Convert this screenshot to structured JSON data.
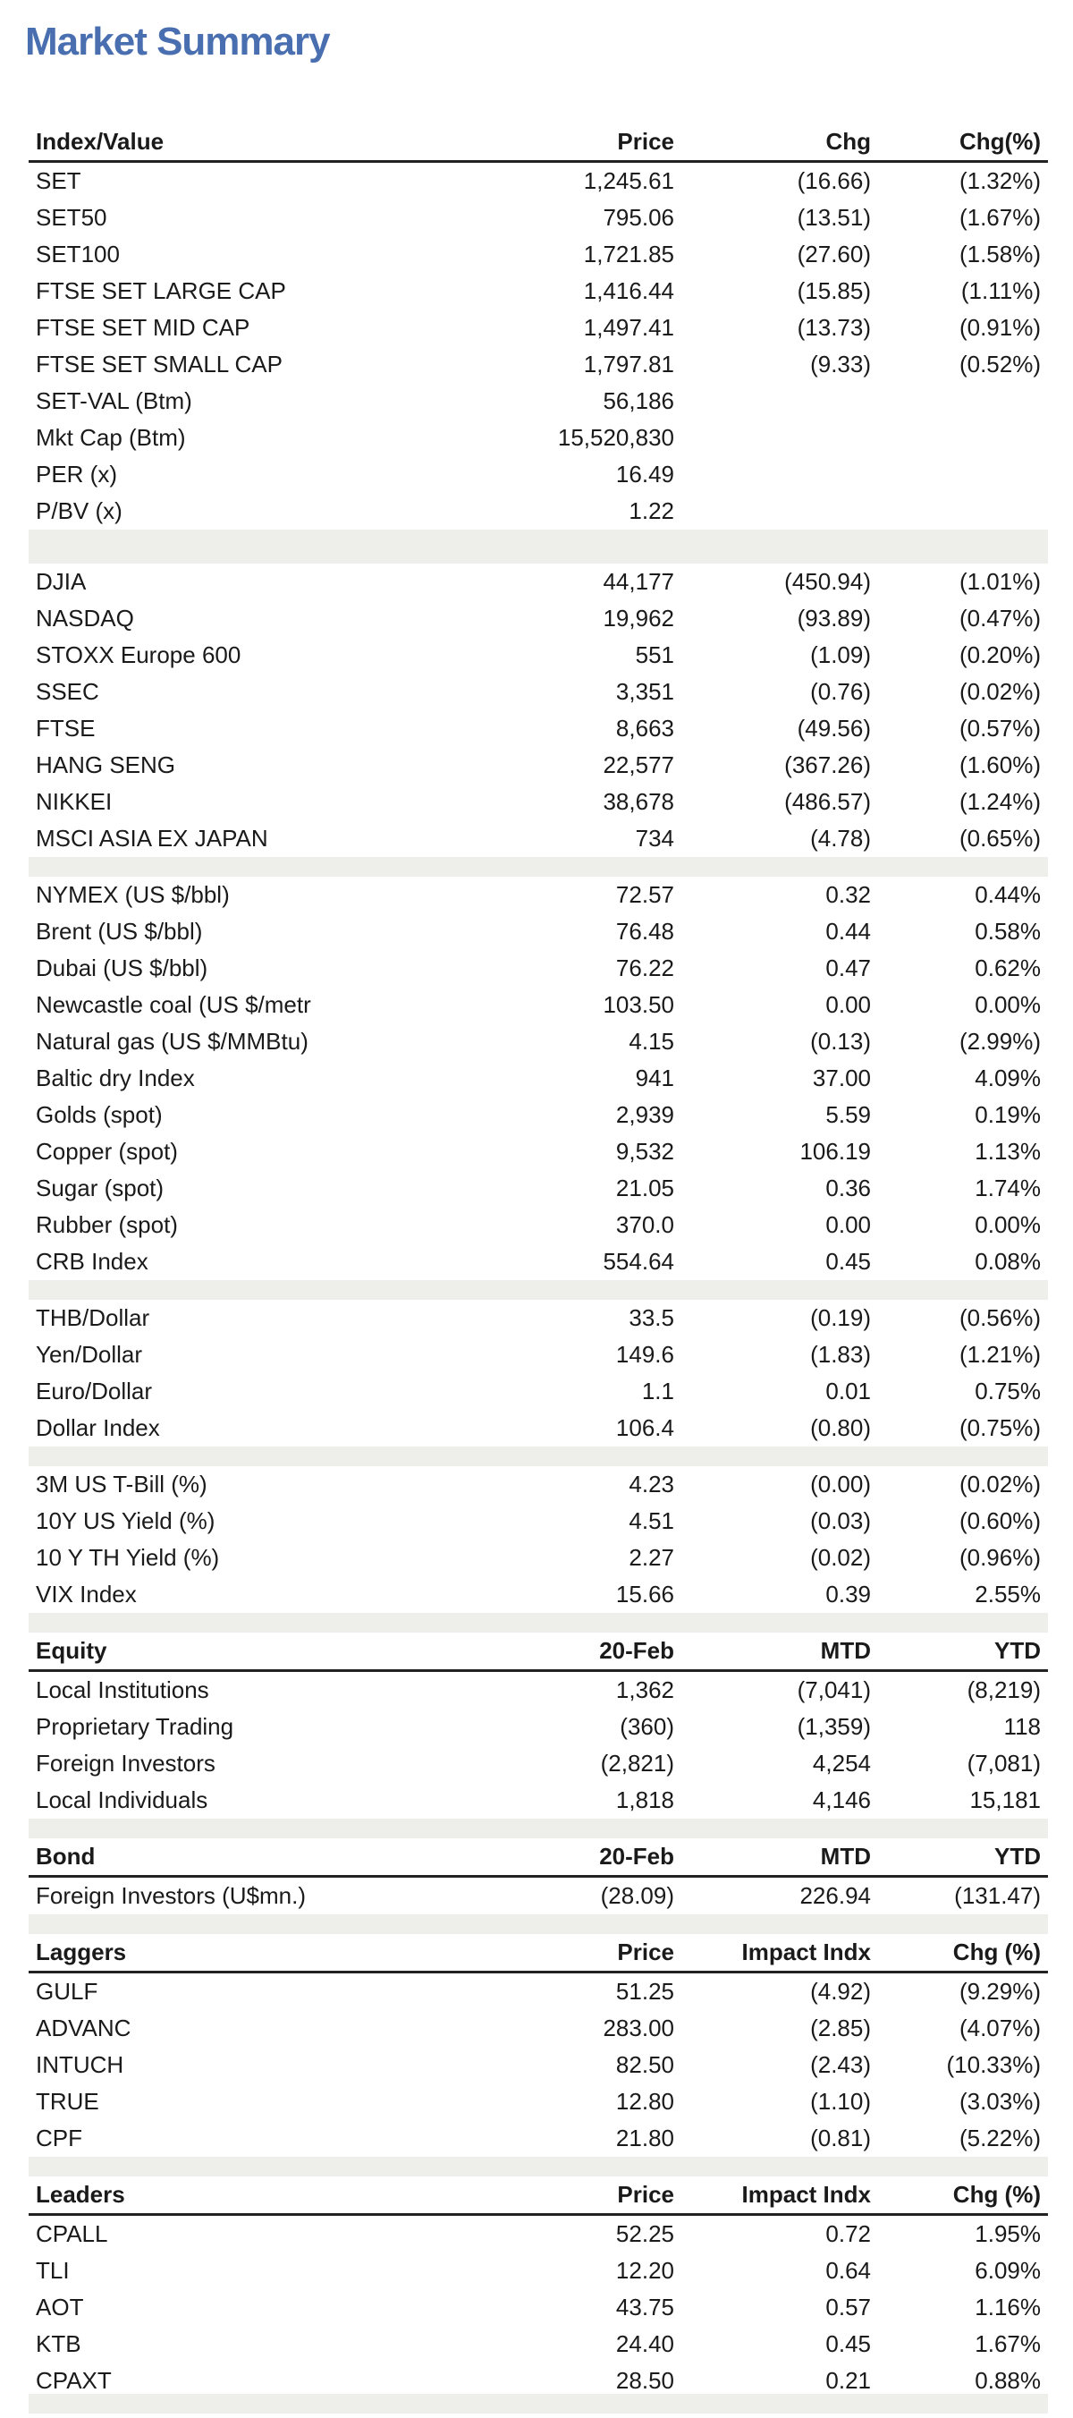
{
  "title": "Market Summary",
  "header": {
    "c1": "Index/Value",
    "c2": "Price",
    "c3": "Chg",
    "c4": "Chg(%)"
  },
  "thai": [
    {
      "name": "SET",
      "price": "1,245.61",
      "chg": "(16.66)",
      "pct": "(1.32%)"
    },
    {
      "name": "SET50",
      "price": "795.06",
      "chg": "(13.51)",
      "pct": "(1.67%)"
    },
    {
      "name": "SET100",
      "price": "1,721.85",
      "chg": "(27.60)",
      "pct": "(1.58%)"
    },
    {
      "name": "FTSE SET LARGE CAP",
      "price": "1,416.44",
      "chg": "(15.85)",
      "pct": "(1.11%)"
    },
    {
      "name": "FTSE SET MID CAP",
      "price": "1,497.41",
      "chg": "(13.73)",
      "pct": "(0.91%)"
    },
    {
      "name": "FTSE SET SMALL CAP",
      "price": "1,797.81",
      "chg": "(9.33)",
      "pct": "(0.52%)"
    },
    {
      "name": "SET-VAL (Btm)",
      "price": "56,186",
      "chg": "",
      "pct": ""
    },
    {
      "name": "Mkt Cap (Btm)",
      "price": "15,520,830",
      "chg": "",
      "pct": ""
    },
    {
      "name": "PER (x)",
      "price": "16.49",
      "chg": "",
      "pct": ""
    },
    {
      "name": "P/BV (x)",
      "price": "1.22",
      "chg": "",
      "pct": ""
    }
  ],
  "global": [
    {
      "name": "DJIA",
      "price": "44,177",
      "chg": "(450.94)",
      "pct": "(1.01%)"
    },
    {
      "name": "NASDAQ",
      "price": "19,962",
      "chg": "(93.89)",
      "pct": "(0.47%)"
    },
    {
      "name": "STOXX Europe 600",
      "price": "551",
      "chg": "(1.09)",
      "pct": "(0.20%)"
    },
    {
      "name": "SSEC",
      "price": "3,351",
      "chg": "(0.76)",
      "pct": "(0.02%)"
    },
    {
      "name": "FTSE",
      "price": "8,663",
      "chg": "(49.56)",
      "pct": "(0.57%)"
    },
    {
      "name": "HANG SENG",
      "price": "22,577",
      "chg": "(367.26)",
      "pct": "(1.60%)"
    },
    {
      "name": "NIKKEI",
      "price": "38,678",
      "chg": "(486.57)",
      "pct": "(1.24%)"
    },
    {
      "name": "MSCI ASIA EX JAPAN",
      "price": "734",
      "chg": "(4.78)",
      "pct": "(0.65%)"
    }
  ],
  "commodities": [
    {
      "name": "NYMEX (US $/bbl)",
      "price": "72.57",
      "chg": "0.32",
      "pct": "0.44%"
    },
    {
      "name": "Brent (US $/bbl)",
      "price": "76.48",
      "chg": "0.44",
      "pct": "0.58%"
    },
    {
      "name": "Dubai (US $/bbl)",
      "price": "76.22",
      "chg": "0.47",
      "pct": "0.62%"
    },
    {
      "name": "Newcastle coal (US $/metr",
      "price": "103.50",
      "chg": "0.00",
      "pct": "0.00%"
    },
    {
      "name": "Natural gas (US $/MMBtu)",
      "price": "4.15",
      "chg": "(0.13)",
      "pct": "(2.99%)"
    },
    {
      "name": "Baltic dry Index",
      "price": "941",
      "chg": "37.00",
      "pct": "4.09%"
    },
    {
      "name": "Golds (spot)",
      "price": "2,939",
      "chg": "5.59",
      "pct": "0.19%"
    },
    {
      "name": "Copper (spot)",
      "price": "9,532",
      "chg": "106.19",
      "pct": "1.13%"
    },
    {
      "name": "Sugar (spot)",
      "price": "21.05",
      "chg": "0.36",
      "pct": "1.74%"
    },
    {
      "name": "Rubber (spot)",
      "price": "370.0",
      "chg": "0.00",
      "pct": "0.00%"
    },
    {
      "name": "CRB Index",
      "price": "554.64",
      "chg": "0.45",
      "pct": "0.08%"
    }
  ],
  "fx": [
    {
      "name": "THB/Dollar",
      "price": "33.5",
      "chg": "(0.19)",
      "pct": "(0.56%)"
    },
    {
      "name": "Yen/Dollar",
      "price": "149.6",
      "chg": "(1.83)",
      "pct": "(1.21%)"
    },
    {
      "name": "Euro/Dollar",
      "price": "1.1",
      "chg": "0.01",
      "pct": "0.75%"
    },
    {
      "name": "Dollar Index",
      "price": "106.4",
      "chg": "(0.80)",
      "pct": "(0.75%)"
    }
  ],
  "rates": [
    {
      "name": "3M US T-Bill (%)",
      "price": "4.23",
      "chg": "(0.00)",
      "pct": "(0.02%)"
    },
    {
      "name": "10Y US Yield (%)",
      "price": "4.51",
      "chg": "(0.03)",
      "pct": "(0.60%)"
    },
    {
      "name": "10 Y TH Yield (%)",
      "price": "2.27",
      "chg": "(0.02)",
      "pct": "(0.96%)"
    },
    {
      "name": "VIX Index",
      "price": "15.66",
      "chg": "0.39",
      "pct": "2.55%"
    }
  ],
  "equity": {
    "header": {
      "c1": "Equity",
      "c2": "20-Feb",
      "c3": "MTD",
      "c4": "YTD"
    },
    "rows": [
      {
        "name": "Local Institutions",
        "price": "1,362",
        "chg": "(7,041)",
        "pct": "(8,219)"
      },
      {
        "name": "Proprietary Trading",
        "price": "(360)",
        "chg": "(1,359)",
        "pct": "118"
      },
      {
        "name": "Foreign Investors",
        "price": "(2,821)",
        "chg": "4,254",
        "pct": "(7,081)"
      },
      {
        "name": "Local Individuals",
        "price": "1,818",
        "chg": "4,146",
        "pct": "15,181"
      }
    ]
  },
  "bond": {
    "header": {
      "c1": "Bond",
      "c2": "20-Feb",
      "c3": "MTD",
      "c4": "YTD"
    },
    "rows": [
      {
        "name": "Foreign Investors (U$mn.)",
        "price": "(28.09)",
        "chg": "226.94",
        "pct": "(131.47)"
      }
    ]
  },
  "laggers": {
    "header": {
      "c1": "Laggers",
      "c2": "Price",
      "c3": "Impact Indx",
      "c4": "Chg (%)"
    },
    "rows": [
      {
        "name": "GULF",
        "price": "51.25",
        "chg": "(4.92)",
        "pct": "(9.29%)"
      },
      {
        "name": "ADVANC",
        "price": "283.00",
        "chg": "(2.85)",
        "pct": "(4.07%)"
      },
      {
        "name": "INTUCH",
        "price": "82.50",
        "chg": "(2.43)",
        "pct": "(10.33%)"
      },
      {
        "name": "TRUE",
        "price": "12.80",
        "chg": "(1.10)",
        "pct": "(3.03%)"
      },
      {
        "name": "CPF",
        "price": "21.80",
        "chg": "(0.81)",
        "pct": "(5.22%)"
      }
    ]
  },
  "leaders": {
    "header": {
      "c1": "Leaders",
      "c2": "Price",
      "c3": "Impact Indx",
      "c4": "Chg (%)"
    },
    "rows": [
      {
        "name": "CPALL",
        "price": "52.25",
        "chg": "0.72",
        "pct": "1.95%"
      },
      {
        "name": "TLI",
        "price": "12.20",
        "chg": "0.64",
        "pct": "6.09%"
      },
      {
        "name": "AOT",
        "price": "43.75",
        "chg": "0.57",
        "pct": "1.16%"
      },
      {
        "name": "KTB",
        "price": "24.40",
        "chg": "0.45",
        "pct": "1.67%"
      },
      {
        "name": "CPAXT",
        "price": "28.50",
        "chg": "0.21",
        "pct": "0.88%"
      }
    ]
  }
}
